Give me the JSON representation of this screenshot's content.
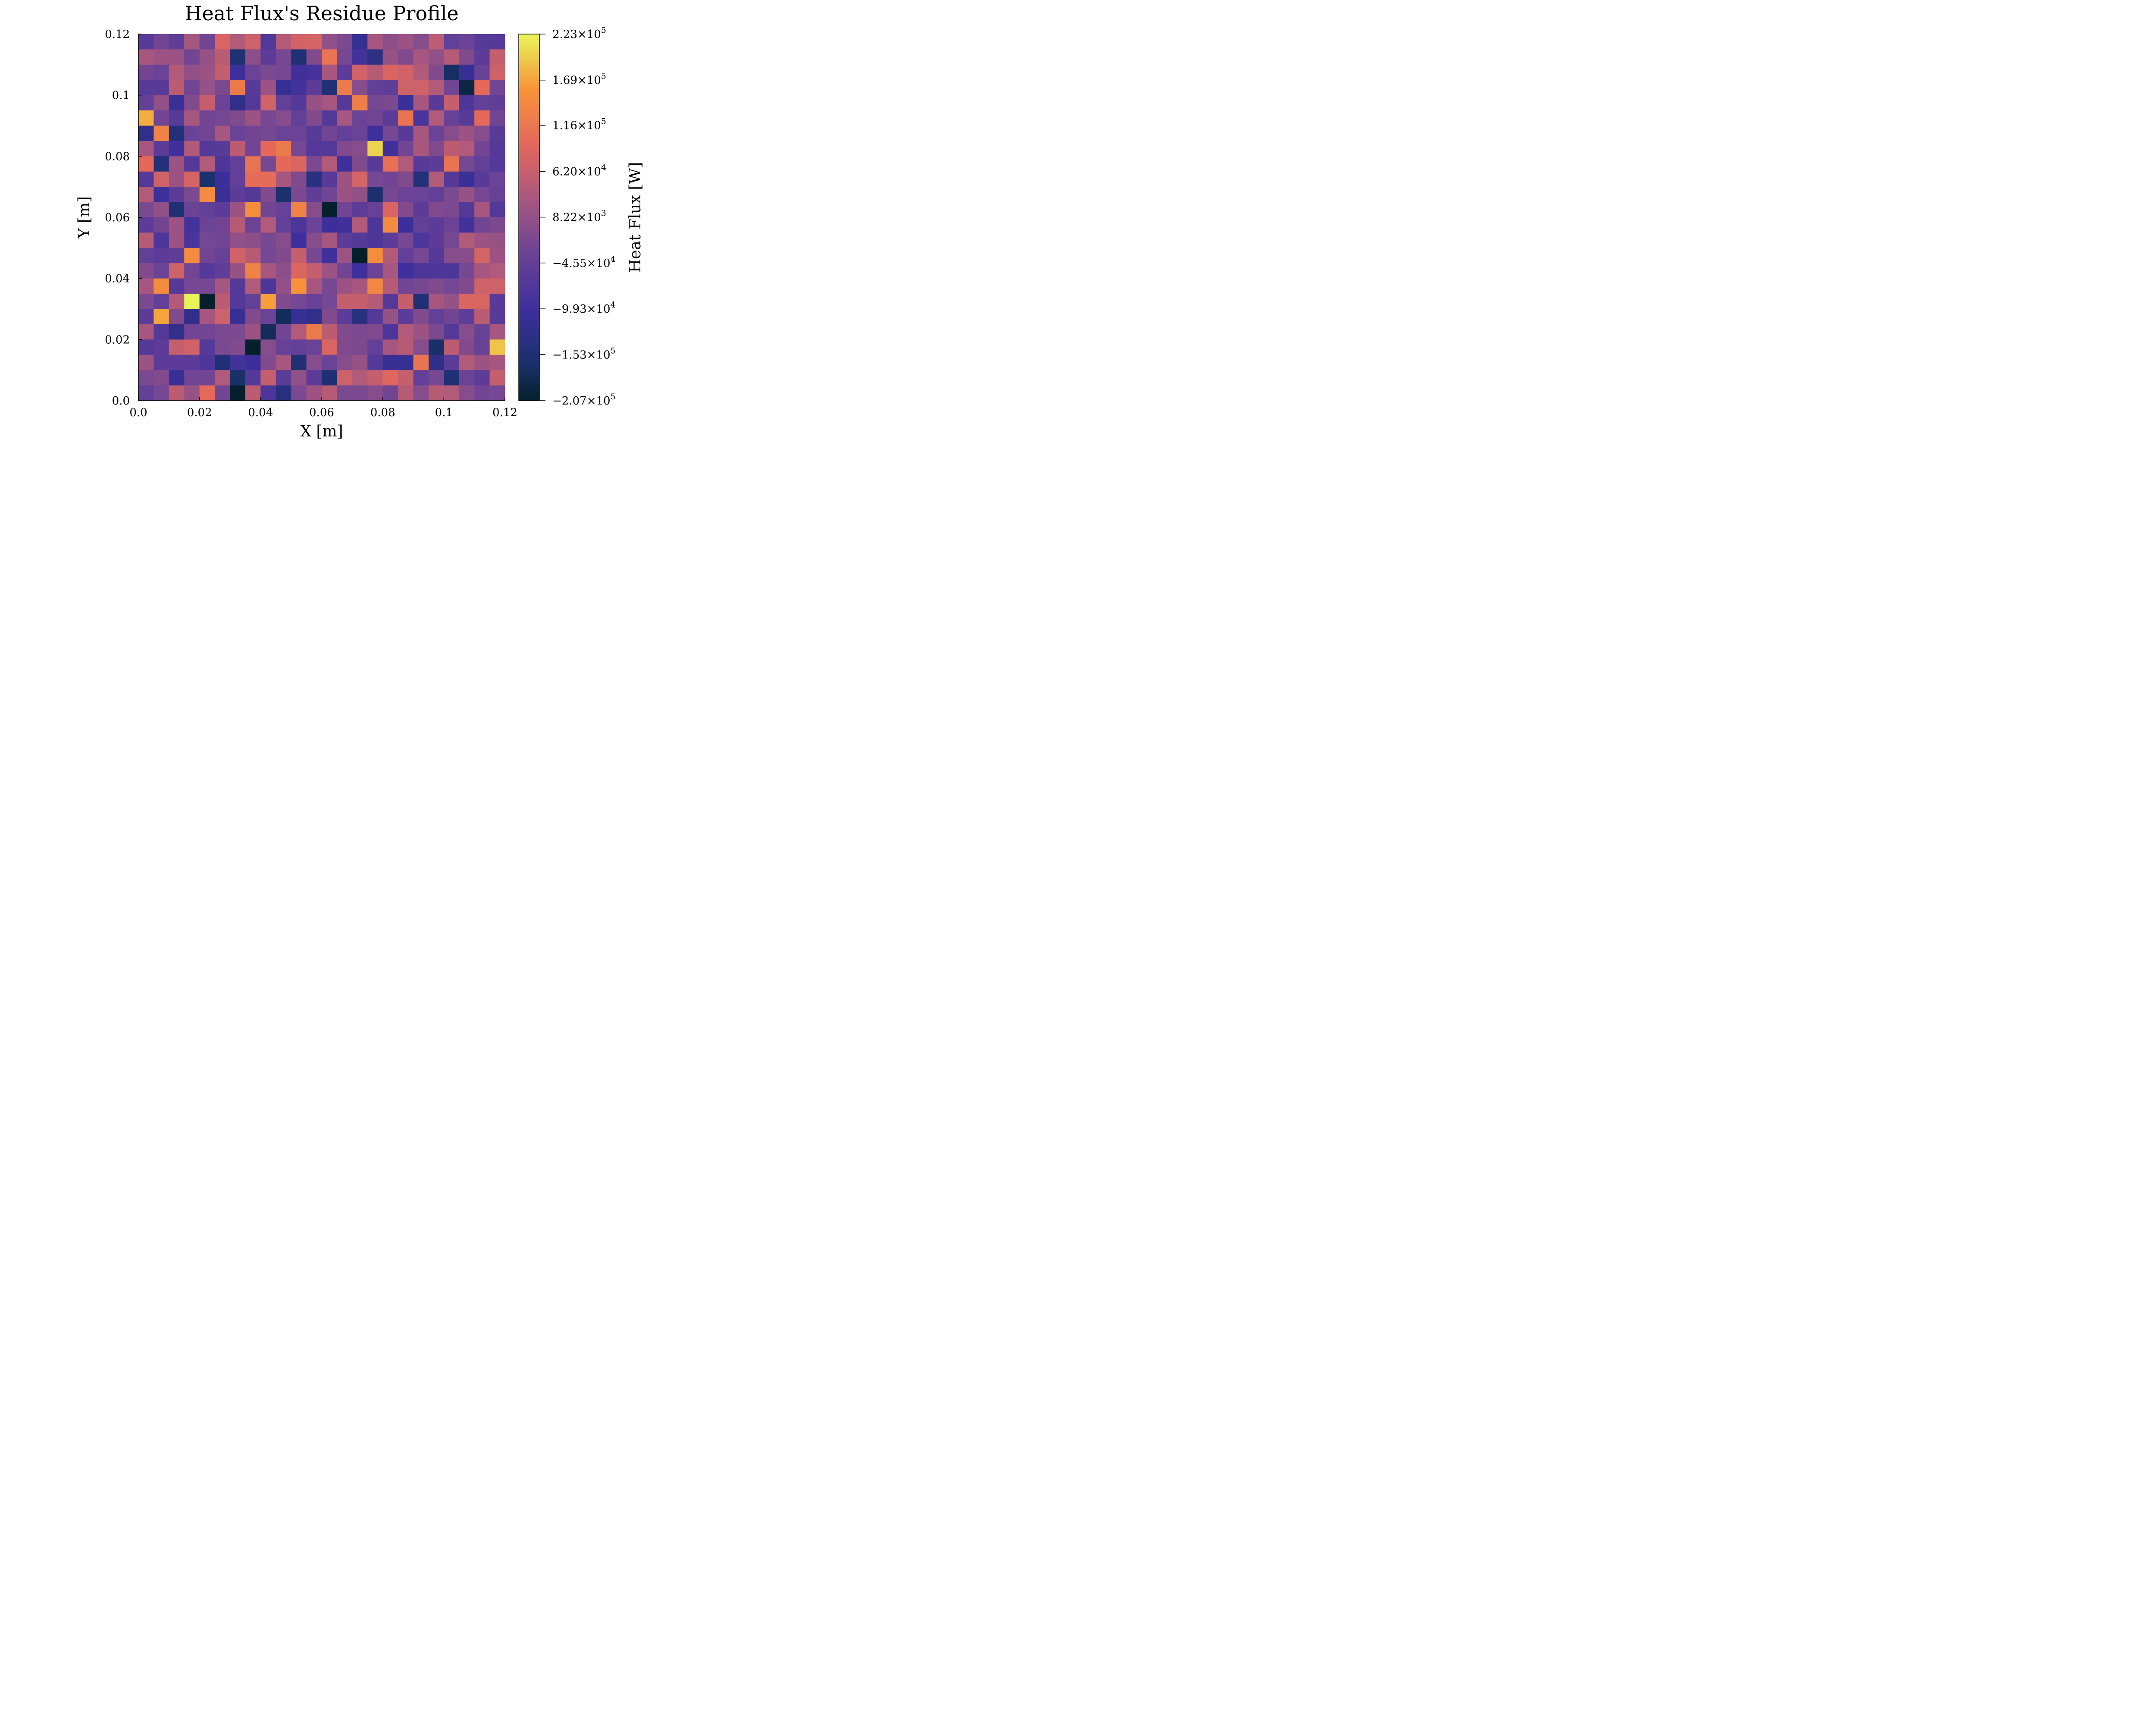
{
  "chart_data": {
    "type": "heatmap",
    "title": "Heat Flux's Residue Profile",
    "xlabel": "X [m]",
    "ylabel": "Y [m]",
    "colorbar_label": "Heat Flux [W]",
    "xlim": [
      0.0,
      0.12
    ],
    "ylim": [
      0.0,
      0.12
    ],
    "x_ticks": [
      "0.0",
      "0.02",
      "0.04",
      "0.06",
      "0.08",
      "0.1",
      "0.12"
    ],
    "x_tick_values": [
      0.0,
      0.02,
      0.04,
      0.06,
      0.08,
      0.1,
      0.12
    ],
    "y_ticks": [
      "0.0",
      "0.02",
      "0.04",
      "0.06",
      "0.08",
      "0.1",
      "0.12"
    ],
    "y_tick_values": [
      0.0,
      0.02,
      0.04,
      0.06,
      0.08,
      0.1,
      0.12
    ],
    "colorbar_ticks": [
      {
        "mantissa": "2.23",
        "exponent": "5",
        "value": 223000
      },
      {
        "mantissa": "1.69",
        "exponent": "5",
        "value": 169000
      },
      {
        "mantissa": "1.16",
        "exponent": "5",
        "value": 116000
      },
      {
        "mantissa": "6.20",
        "exponent": "4",
        "value": 62000
      },
      {
        "mantissa": "8.22",
        "exponent": "3",
        "value": 8220
      },
      {
        "mantissa": "−4.55",
        "exponent": "4",
        "value": -45500
      },
      {
        "mantissa": "−9.93",
        "exponent": "4",
        "value": -99300
      },
      {
        "mantissa": "−1.53",
        "exponent": "5",
        "value": -153000
      },
      {
        "mantissa": "−2.07",
        "exponent": "5",
        "value": -207000
      }
    ],
    "colorbar_range": [
      -207000,
      223000
    ],
    "colormap": "thermal",
    "grid": false,
    "nx": 24,
    "ny": 24,
    "cell_size": 0.005,
    "values_note": "rows listed top (y≈0.1175) to bottom (y≈0.0025); values in kW",
    "values_kW": [
      [
        -61,
        -28,
        -51,
        28,
        -28,
        82,
        39,
        70,
        -72,
        42,
        72,
        78,
        6,
        -17,
        -113,
        28,
        0,
        17,
        -6,
        51,
        -45,
        -34,
        -61,
        -67
      ],
      [
        28,
        17,
        17,
        -28,
        11,
        50,
        -152,
        0,
        -56,
        -23,
        -150,
        -11,
        111,
        -23,
        -91,
        -133,
        11,
        -11,
        28,
        6,
        45,
        -11,
        -56,
        61
      ],
      [
        -28,
        -34,
        39,
        6,
        17,
        61,
        -99,
        -34,
        -17,
        -23,
        -95,
        -89,
        28,
        -56,
        72,
        45,
        82,
        72,
        39,
        -11,
        -170,
        -110,
        -39,
        70
      ],
      [
        -61,
        -61,
        50,
        -28,
        11,
        -17,
        122,
        -61,
        17,
        -110,
        -91,
        -56,
        -150,
        122,
        -6,
        -45,
        -50,
        70,
        70,
        39,
        -28,
        -190,
        95,
        -28
      ],
      [
        -45,
        6,
        -106,
        -11,
        61,
        -34,
        -121,
        -67,
        72,
        -45,
        -67,
        11,
        28,
        -67,
        128,
        -23,
        -17,
        -105,
        28,
        -61,
        61,
        -78,
        -45,
        -51
      ],
      [
        175,
        -28,
        -61,
        28,
        -28,
        -23,
        -11,
        17,
        -23,
        -6,
        -45,
        -11,
        -67,
        28,
        -34,
        -28,
        -56,
        111,
        -84,
        39,
        -40,
        -61,
        95,
        -28
      ],
      [
        -121,
        133,
        -143,
        -34,
        -28,
        28,
        -34,
        -28,
        -23,
        -34,
        -34,
        -61,
        -28,
        -45,
        -34,
        -100,
        -23,
        -61,
        28,
        -34,
        -6,
        17,
        -6,
        -61
      ],
      [
        28,
        -56,
        -95,
        39,
        -67,
        -61,
        50,
        -28,
        95,
        122,
        -23,
        -67,
        -67,
        -11,
        -6,
        201,
        -95,
        -28,
        28,
        -11,
        50,
        39,
        -28,
        -67
      ],
      [
        95,
        -145,
        17,
        -67,
        39,
        -78,
        -45,
        111,
        -23,
        95,
        84,
        -17,
        39,
        -100,
        -11,
        -61,
        106,
        39,
        -61,
        -56,
        111,
        -23,
        -45,
        -67
      ],
      [
        -67,
        70,
        17,
        78,
        -160,
        -101,
        -45,
        100,
        100,
        28,
        -11,
        -135,
        -61,
        17,
        78,
        -23,
        -28,
        -11,
        -145,
        39,
        -67,
        -105,
        -61,
        -34
      ],
      [
        39,
        -100,
        -56,
        -17,
        145,
        -106,
        -56,
        -67,
        -11,
        -160,
        -17,
        -51,
        -28,
        17,
        6,
        -160,
        -23,
        -34,
        -34,
        -45,
        -17,
        11,
        -23,
        -40
      ],
      [
        -17,
        6,
        -150,
        -34,
        -45,
        -56,
        17,
        150,
        -28,
        -40,
        133,
        -6,
        -220,
        -28,
        -56,
        -40,
        82,
        -11,
        -56,
        -11,
        -17,
        -67,
        28,
        -70
      ],
      [
        -56,
        -28,
        17,
        -90,
        -34,
        -28,
        45,
        -34,
        39,
        -45,
        -78,
        -34,
        -101,
        -95,
        39,
        -78,
        145,
        -101,
        -45,
        -56,
        -34,
        -90,
        -28,
        -17
      ],
      [
        45,
        -78,
        17,
        -84,
        -23,
        -28,
        6,
        0,
        -23,
        -6,
        -100,
        -6,
        28,
        -56,
        -67,
        -78,
        -56,
        -23,
        -78,
        -56,
        -23,
        39,
        17,
        11
      ],
      [
        -45,
        -56,
        -51,
        145,
        -28,
        -40,
        72,
        45,
        -23,
        -11,
        61,
        -23,
        -95,
        17,
        -220,
        150,
        39,
        -45,
        -23,
        -67,
        -6,
        -6,
        78,
        17
      ],
      [
        -11,
        -34,
        70,
        -28,
        -67,
        -51,
        11,
        133,
        28,
        0,
        84,
        61,
        17,
        -28,
        -99,
        -34,
        28,
        -100,
        -78,
        -78,
        -78,
        -23,
        28,
        39
      ],
      [
        28,
        145,
        -67,
        -23,
        -23,
        28,
        -67,
        39,
        -78,
        6,
        155,
        28,
        -23,
        17,
        28,
        140,
        45,
        -28,
        -23,
        -11,
        -23,
        -11,
        70,
        70
      ],
      [
        -17,
        -45,
        39,
        222,
        -220,
        50,
        -67,
        -45,
        165,
        -11,
        -23,
        -40,
        -23,
        61,
        61,
        45,
        -67,
        61,
        -150,
        28,
        11,
        84,
        82,
        -61
      ],
      [
        -56,
        170,
        -11,
        -121,
        28,
        70,
        -110,
        -11,
        -34,
        -175,
        -110,
        -121,
        -11,
        -56,
        -135,
        -67,
        11,
        -56,
        -11,
        -45,
        -28,
        -51,
        50,
        -61
      ],
      [
        28,
        -67,
        -121,
        -28,
        -28,
        -17,
        -17,
        17,
        -175,
        -28,
        39,
        122,
        50,
        -11,
        -17,
        -11,
        -78,
        39,
        17,
        -17,
        -67,
        -6,
        -40,
        28
      ],
      [
        -67,
        -56,
        61,
        72,
        -67,
        -17,
        -11,
        -210,
        -6,
        -40,
        -45,
        -34,
        82,
        -11,
        -17,
        -45,
        28,
        45,
        -6,
        -165,
        50,
        -11,
        -40,
        190
      ],
      [
        17,
        -56,
        -56,
        -56,
        -78,
        -150,
        -90,
        -101,
        -11,
        28,
        -150,
        -6,
        -34,
        -6,
        11,
        -67,
        -110,
        -110,
        111,
        -125,
        -56,
        39,
        17,
        28
      ],
      [
        -17,
        -11,
        -110,
        -28,
        -28,
        39,
        -165,
        -67,
        61,
        -56,
        6,
        -56,
        -155,
        70,
        39,
        61,
        89,
        61,
        -45,
        -23,
        -150,
        -34,
        -56,
        61
      ],
      [
        -45,
        -23,
        50,
        11,
        95,
        -28,
        -220,
        50,
        -78,
        -140,
        -17,
        17,
        45,
        -17,
        -17,
        -6,
        -28,
        45,
        -6,
        45,
        39,
        -6,
        -28,
        -23
      ]
    ]
  }
}
